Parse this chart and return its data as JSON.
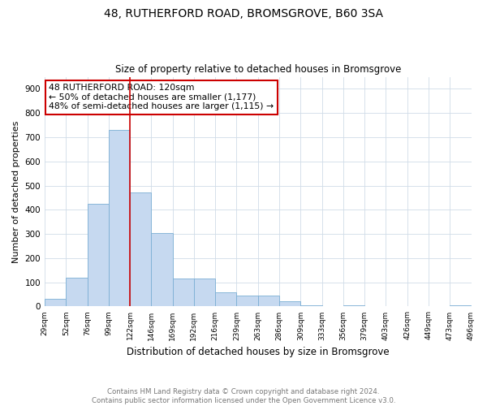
{
  "title": "48, RUTHERFORD ROAD, BROMSGROVE, B60 3SA",
  "subtitle": "Size of property relative to detached houses in Bromsgrove",
  "xlabel": "Distribution of detached houses by size in Bromsgrove",
  "ylabel": "Number of detached properties",
  "footnote1": "Contains HM Land Registry data © Crown copyright and database right 2024.",
  "footnote2": "Contains public sector information licensed under the Open Government Licence v3.0.",
  "annotation_line1": "48 RUTHERFORD ROAD: 120sqm",
  "annotation_line2": "← 50% of detached houses are smaller (1,177)",
  "annotation_line3": "48% of semi-detached houses are larger (1,115) →",
  "bar_values": [
    30,
    120,
    425,
    730,
    470,
    305,
    115,
    115,
    60,
    45,
    45,
    20,
    5,
    0,
    5,
    0,
    0,
    0,
    0,
    5
  ],
  "x_labels": [
    "29sqm",
    "52sqm",
    "76sqm",
    "99sqm",
    "122sqm",
    "146sqm",
    "169sqm",
    "192sqm",
    "216sqm",
    "239sqm",
    "263sqm",
    "286sqm",
    "309sqm",
    "333sqm",
    "356sqm",
    "379sqm",
    "403sqm",
    "426sqm",
    "449sqm",
    "473sqm",
    "496sqm"
  ],
  "bar_color": "#c6d9f0",
  "bar_edge_color": "#7bafd4",
  "marker_line_color": "#cc0000",
  "annotation_box_color": "#cc0000",
  "background_color": "#ffffff",
  "grid_color": "#d0dce8",
  "ylim": [
    0,
    950
  ],
  "marker_label_index": 4,
  "yticks": [
    0,
    100,
    200,
    300,
    400,
    500,
    600,
    700,
    800,
    900
  ]
}
